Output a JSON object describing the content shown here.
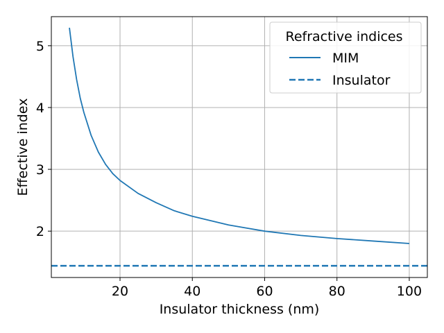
{
  "chart_data": {
    "type": "line",
    "title": "",
    "xlabel": "Insulator thickness (nm)",
    "ylabel": "Effective index",
    "xlim": [
      1,
      105
    ],
    "ylim": [
      1.25,
      5.47
    ],
    "xticks": [
      20,
      40,
      60,
      80,
      100
    ],
    "yticks": [
      2,
      3,
      4,
      5
    ],
    "grid": true,
    "legend": {
      "title": "Refractive indices",
      "placement": "top-right"
    },
    "series": [
      {
        "name": "MIM",
        "style": "solid",
        "color": "#1f77b4",
        "x": [
          6,
          7,
          8,
          9,
          10,
          12,
          14,
          16,
          18,
          20,
          25,
          30,
          35,
          40,
          45,
          50,
          55,
          60,
          70,
          80,
          90,
          100
        ],
        "y": [
          5.29,
          4.82,
          4.45,
          4.15,
          3.92,
          3.55,
          3.28,
          3.08,
          2.93,
          2.82,
          2.61,
          2.46,
          2.33,
          2.24,
          2.17,
          2.1,
          2.05,
          2.0,
          1.93,
          1.88,
          1.84,
          1.8
        ]
      },
      {
        "name": "Insulator",
        "style": "dashed",
        "color": "#1f77b4",
        "x": [
          1,
          105
        ],
        "y": [
          1.44,
          1.44
        ]
      }
    ]
  }
}
